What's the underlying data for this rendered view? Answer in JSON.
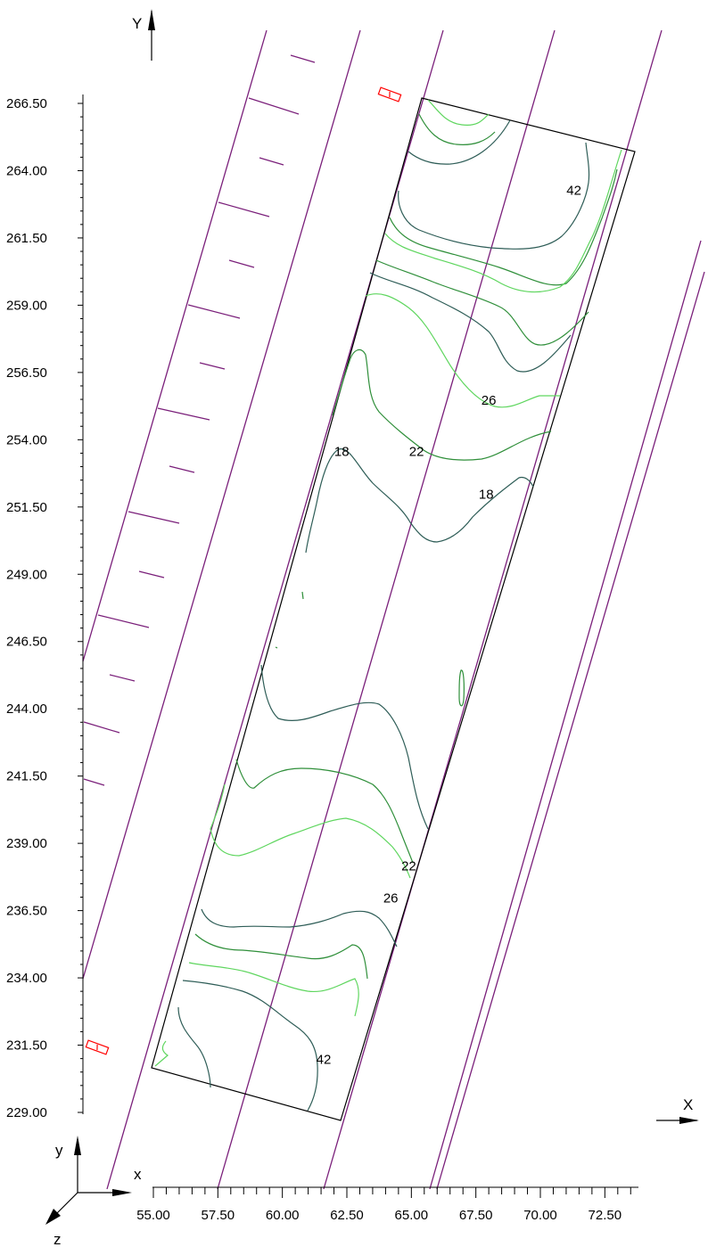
{
  "axes": {
    "x_name": "X",
    "y_name": "Y",
    "triad": {
      "x": "x",
      "y": "y",
      "z": "z"
    },
    "x_ticks": [
      "55.00",
      "57.50",
      "60.00",
      "62.50",
      "65.00",
      "67.50",
      "70.00",
      "72.50"
    ],
    "y_ticks": [
      "266.50",
      "264.00",
      "261.50",
      "259.00",
      "256.50",
      "254.00",
      "251.50",
      "249.00",
      "246.50",
      "244.00",
      "241.50",
      "239.00",
      "236.50",
      "234.00",
      "231.50",
      "229.00"
    ]
  },
  "contour_labels": [
    {
      "text": "42",
      "x": 71.3,
      "y": 263.1
    },
    {
      "text": "26",
      "x": 68.0,
      "y": 255.3
    },
    {
      "text": "18",
      "x": 62.3,
      "y": 253.4
    },
    {
      "text": "22",
      "x": 65.2,
      "y": 253.4
    },
    {
      "text": "18",
      "x": 67.9,
      "y": 251.8
    },
    {
      "text": "22",
      "x": 64.9,
      "y": 238.0
    },
    {
      "text": "26",
      "x": 64.2,
      "y": 236.8
    },
    {
      "text": "42",
      "x": 61.6,
      "y": 230.8
    }
  ],
  "colors": {
    "road_lines": "#7a1f7a",
    "boundary": "#000000",
    "marker": "#ff0000",
    "contour_dark": "#2e5d57",
    "contour_mid": "#2f8f3a",
    "contour_light": "#5fd65f"
  }
}
